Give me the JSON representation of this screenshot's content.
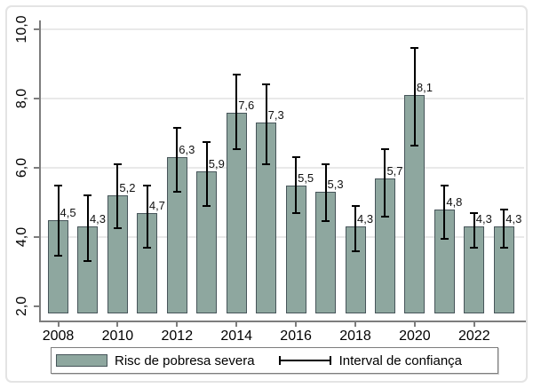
{
  "figure": {
    "background": "#ffffff",
    "border_color": "#e4e4e4"
  },
  "chart_data": {
    "type": "bar",
    "title": "",
    "xlabel": "",
    "ylabel": "",
    "categories": [
      "2008",
      "2009",
      "2010",
      "2011",
      "2012",
      "2013",
      "2014",
      "2015",
      "2016",
      "2017",
      "2018",
      "2019",
      "2020",
      "2021",
      "2022",
      "2023"
    ],
    "series": [
      {
        "name": "Risc de pobresa severa",
        "values": [
          4.5,
          4.3,
          5.2,
          4.7,
          6.3,
          5.9,
          7.6,
          7.3,
          5.5,
          5.3,
          4.3,
          5.7,
          8.1,
          4.8,
          4.3,
          4.3
        ]
      }
    ],
    "error_bars": {
      "name": "Interval de confiança",
      "low": [
        3.45,
        3.3,
        4.25,
        3.7,
        5.3,
        4.9,
        6.55,
        6.1,
        4.7,
        4.45,
        3.6,
        4.6,
        6.65,
        3.95,
        3.7,
        3.7
      ],
      "high": [
        5.5,
        5.2,
        6.1,
        5.5,
        7.15,
        6.75,
        8.7,
        8.4,
        6.3,
        6.1,
        4.9,
        6.55,
        9.45,
        5.5,
        4.7,
        4.8
      ]
    },
    "data_labels": [
      "4,5",
      "4,3",
      "5,2",
      "4,7",
      "6,3",
      "5,9",
      "7,6",
      "7,3",
      "5,5",
      "5,3",
      "4,3",
      "5,7",
      "8,1",
      "4,8",
      "4,3",
      "4,3"
    ],
    "ylim": [
      2,
      10
    ],
    "y_ticks": [
      2,
      4,
      6,
      8,
      10
    ],
    "y_tick_labels": [
      "2,0",
      "4,0",
      "6,0",
      "8,0",
      "10,0"
    ],
    "x_tick_labels": [
      "2008",
      "2010",
      "2012",
      "2014",
      "2016",
      "2018",
      "2020",
      "2022"
    ],
    "grid_values": [
      4,
      6,
      8,
      10
    ],
    "grid": true,
    "legend_position": "bottom",
    "decimal_separator": ",",
    "colors": {
      "bar_fill": "#8ea79f",
      "bar_border": "#47555a",
      "error_bar": "#000000",
      "axis": "#7d7d7d",
      "gridline": "#e9e9e9",
      "text": "#000000"
    },
    "legend": [
      {
        "glyph": "bar-swatch",
        "label": "Risc de pobresa severa"
      },
      {
        "glyph": "error-bar",
        "label": "Interval de confiança"
      }
    ]
  }
}
